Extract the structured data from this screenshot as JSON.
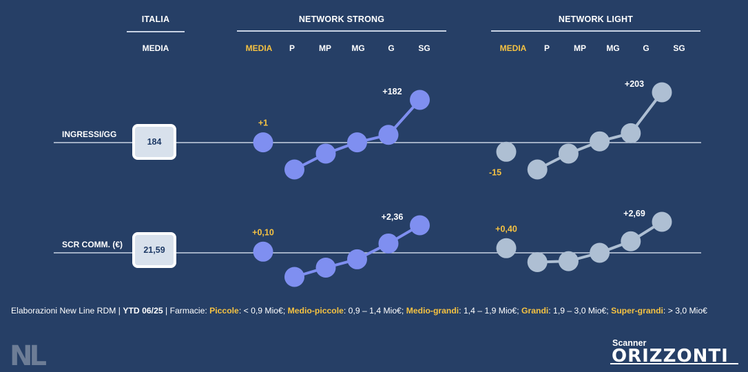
{
  "headers": {
    "italia": "ITALIA",
    "network_strong": "NETWORK STRONG",
    "network_light": "NETWORK LIGHT",
    "italia_sub": "MEDIA",
    "strong_sub": [
      "MEDIA",
      "P",
      "MP",
      "MG",
      "G",
      "SG"
    ],
    "light_sub": [
      "MEDIA",
      "P",
      "MP",
      "MG",
      "G",
      "SG"
    ]
  },
  "rows": {
    "ingressi": {
      "label": "INGRESSI/GG",
      "italia_value": "184"
    },
    "scr": {
      "label": "SCR COMM. (€)",
      "italia_value": "21,59"
    }
  },
  "chart_data": [
    {
      "type": "line",
      "metric": "INGRESSI/GG",
      "group": "NETWORK STRONG",
      "categories": [
        "MEDIA",
        "P",
        "MP",
        "MG",
        "G",
        "SG"
      ],
      "values": [
        1,
        -44,
        -18,
        1,
        33,
        182
      ],
      "labels": {
        "MEDIA": "+1",
        "SG": "+182"
      }
    },
    {
      "type": "line",
      "metric": "INGRESSI/GG",
      "group": "NETWORK LIGHT",
      "categories": [
        "MEDIA",
        "P",
        "MP",
        "MG",
        "G",
        "SG"
      ],
      "values": [
        -15,
        -44,
        -18,
        5,
        38,
        203
      ],
      "labels": {
        "MEDIA": "-15",
        "SG": "+203"
      }
    },
    {
      "type": "line",
      "metric": "SCR COMM. (€)",
      "group": "NETWORK STRONG",
      "categories": [
        "MEDIA",
        "P",
        "MP",
        "MG",
        "G",
        "SG"
      ],
      "values": [
        0.1,
        -2.6,
        -1.6,
        -0.7,
        0.8,
        2.36
      ],
      "labels": {
        "MEDIA": "+0,10",
        "SG": "+2,36"
      }
    },
    {
      "type": "line",
      "metric": "SCR COMM. (€)",
      "group": "NETWORK LIGHT",
      "categories": [
        "MEDIA",
        "P",
        "MP",
        "MG",
        "G",
        "SG"
      ],
      "values": [
        0.4,
        -1.0,
        -0.9,
        0,
        1.0,
        2.69
      ],
      "labels": {
        "MEDIA": "+0,40",
        "SG": "+2,69"
      }
    }
  ],
  "colors": {
    "background": "#263f66",
    "strong_series": "#7f8ff0",
    "light_series": "#aebfd3",
    "highlight": "#f5c242",
    "baseline": "#c9d3e4"
  },
  "footer": {
    "part1": "Elaborazioni New Line RDM | ",
    "ytd": "YTD 06/25",
    "part2": " | Farmacie: ",
    "c1": "Piccole",
    "t1": ": < 0,9 Mio€; ",
    "c2": "Medio-piccole",
    "t2": ": 0,9 – 1,4 Mio€; ",
    "c3": "Medio-grandi",
    "t3": ": 1,4 – 1,9 Mio€; ",
    "c4": "Grandi",
    "t4": ": 1,9 – 3,0 Mio€; ",
    "c5": "Super-grandi",
    "t5": ": > 3,0 Mio€"
  },
  "logos": {
    "nl": "NL",
    "scanner": "Scanner",
    "orizzonti": "ORIZZONTI"
  }
}
